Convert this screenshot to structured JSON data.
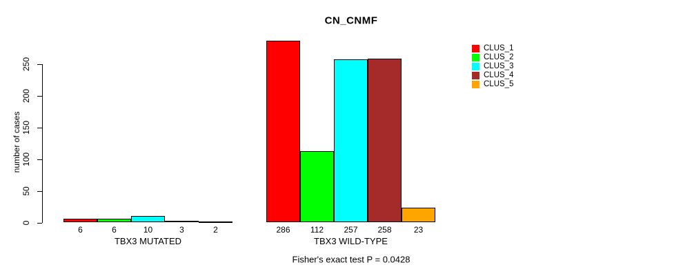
{
  "chart_data": {
    "type": "bar",
    "title": "CN_CNMF",
    "ylabel": "number of cases",
    "xlabel": "",
    "footer": "Fisher's exact test P = 0.0428",
    "ylim": [
      0,
      286
    ],
    "y_ticks": [
      0,
      50,
      100,
      150,
      200,
      250
    ],
    "grid": false,
    "legend_position": "top-right",
    "categories": [
      "TBX3 MUTATED",
      "TBX3 WILD-TYPE"
    ],
    "series": [
      {
        "name": "CLUS_1",
        "color": "#FF0000",
        "values": [
          6,
          286
        ]
      },
      {
        "name": "CLUS_2",
        "color": "#00FF00",
        "values": [
          6,
          112
        ]
      },
      {
        "name": "CLUS_3",
        "color": "#00FFFF",
        "values": [
          10,
          257
        ]
      },
      {
        "name": "CLUS_4",
        "color": "#A52A2A",
        "values": [
          3,
          258
        ]
      },
      {
        "name": "CLUS_5",
        "color": "#FFA500",
        "values": [
          2,
          23
        ]
      }
    ],
    "bar_value_labels_shown": true
  }
}
